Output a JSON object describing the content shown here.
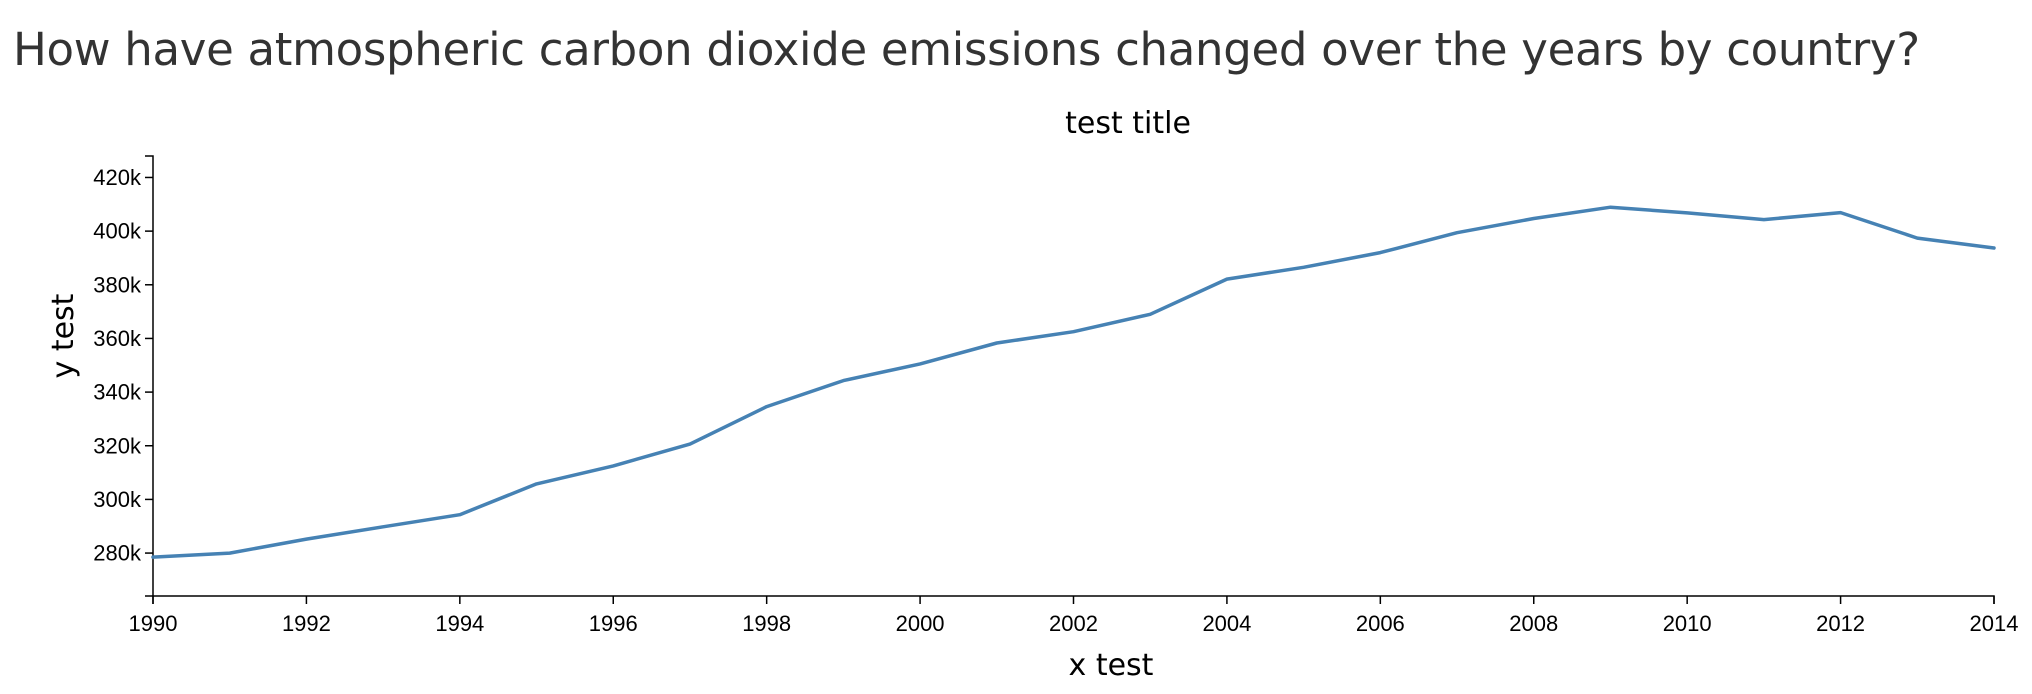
{
  "page": {
    "heading": "How have atmospheric carbon dioxide emissions changed over the years by country?"
  },
  "chart_data": {
    "type": "line",
    "title": "test title",
    "xlabel": "x test",
    "ylabel": "y test",
    "xlim": [
      1990,
      2014
    ],
    "ylim": [
      264000,
      428000
    ],
    "x_ticks": [
      1990,
      1992,
      1994,
      1996,
      1998,
      2000,
      2002,
      2004,
      2006,
      2008,
      2010,
      2012,
      2014
    ],
    "x_tick_labels": [
      "1990",
      "1992",
      "1994",
      "1996",
      "1998",
      "2000",
      "2002",
      "2004",
      "2006",
      "2008",
      "2010",
      "2012",
      "2014"
    ],
    "y_ticks": [
      280000,
      300000,
      320000,
      340000,
      360000,
      380000,
      400000,
      420000
    ],
    "y_tick_labels": [
      "280k",
      "300k",
      "320k",
      "340k",
      "360k",
      "380k",
      "400k",
      "420k"
    ],
    "grid": false,
    "line_color": "#4682b4",
    "series": [
      {
        "x": [
          1990,
          1991,
          1992,
          1993,
          1994,
          1995,
          1996,
          1997,
          1998,
          1999,
          2000,
          2001,
          2002,
          2003,
          2004,
          2005,
          2006,
          2007,
          2008,
          2009,
          2010,
          2011,
          2012,
          2013,
          2014
        ],
        "values": [
          278500,
          280000,
          285200,
          289800,
          294300,
          305800,
          312500,
          320600,
          334600,
          344300,
          350500,
          358300,
          362500,
          369000,
          382100,
          386500,
          392000,
          399400,
          404700,
          408900,
          406800,
          404300,
          406900,
          397400,
          393700
        ]
      }
    ]
  }
}
